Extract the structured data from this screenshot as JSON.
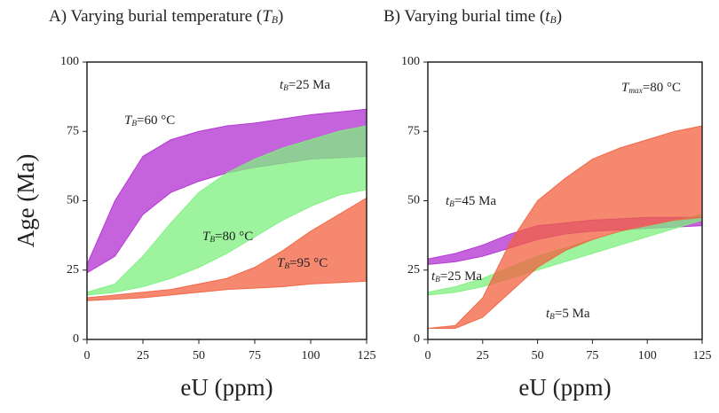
{
  "chart_data": [
    {
      "type": "band",
      "title": {
        "text": "A) Varying burial temperature (",
        "var": "T",
        "sub": "B",
        "end": ")"
      },
      "xlabel": "eU (ppm)",
      "ylabel": "Age (Ma)",
      "annotation": {
        "var": "t",
        "sub": "B",
        "rest": "=25 Ma"
      },
      "x": [
        0,
        12.5,
        25,
        37.5,
        50,
        62.5,
        75,
        87.5,
        100,
        112.5,
        125
      ],
      "xlim": [
        0,
        125
      ],
      "xticks": [
        0,
        25,
        50,
        75,
        100,
        125
      ],
      "ylim": [
        0,
        100
      ],
      "yticks": [
        0,
        25,
        50,
        75,
        100
      ],
      "series": [
        {
          "var": "T",
          "sub": "B",
          "rest": "=60 °C",
          "color": "#b12fd1",
          "upper": [
            27,
            50,
            66,
            72,
            75,
            77,
            78,
            79.5,
            81,
            82,
            83
          ],
          "lower": [
            24,
            30,
            45,
            53,
            57,
            60,
            62,
            63.5,
            65,
            65.5,
            66
          ]
        },
        {
          "var": "T",
          "sub": "B",
          "rest": "=80 °C",
          "color": "#7ef07e",
          "upper": [
            17,
            20,
            30,
            42,
            53,
            60,
            65,
            69,
            72,
            75,
            77
          ],
          "lower": [
            16,
            17,
            19,
            22,
            26,
            31,
            37,
            43,
            48,
            52,
            54
          ]
        },
        {
          "var": "T",
          "sub": "B",
          "rest": "=95 °C",
          "color": "#f2603f",
          "upper": [
            15,
            16,
            17,
            18,
            20,
            22,
            26,
            32,
            39,
            45,
            51
          ],
          "lower": [
            14,
            14.5,
            15,
            16,
            17,
            18,
            18.5,
            19,
            20,
            20.5,
            21
          ]
        }
      ]
    },
    {
      "type": "band",
      "title": {
        "text": "B) Varying burial time (",
        "var": "t",
        "sub": "B",
        "end": ")"
      },
      "xlabel": "eU (ppm)",
      "annotation": {
        "var": "T",
        "sub": "max",
        "rest": "=80 °C"
      },
      "x": [
        0,
        12.5,
        25,
        37.5,
        50,
        62.5,
        75,
        87.5,
        100,
        112.5,
        125
      ],
      "xlim": [
        0,
        125
      ],
      "xticks": [
        0,
        25,
        50,
        75,
        100,
        125
      ],
      "ylim": [
        0,
        100
      ],
      "yticks": [
        0,
        25,
        50,
        75,
        100
      ],
      "series": [
        {
          "var": "t",
          "sub": "B",
          "rest": "=45 Ma",
          "color": "#b12fd1",
          "upper": [
            29,
            31,
            34,
            38,
            41,
            42,
            43,
            43.5,
            44,
            44,
            44
          ],
          "lower": [
            27,
            28,
            30,
            33,
            36,
            38,
            39,
            39.5,
            40,
            40.5,
            41
          ]
        },
        {
          "var": "t",
          "sub": "B",
          "rest": "=25 Ma",
          "color": "#7ef07e",
          "upper": [
            17,
            19,
            22,
            26,
            30,
            33,
            36,
            39,
            41,
            43,
            45
          ],
          "lower": [
            16,
            17,
            19,
            22,
            25,
            28,
            31,
            34,
            37,
            40,
            43
          ]
        },
        {
          "var": "t",
          "sub": "B",
          "rest": "=5 Ma",
          "color": "#f2603f",
          "upper": [
            4,
            5,
            15,
            35,
            50,
            58,
            65,
            69,
            72,
            75,
            77
          ],
          "lower": [
            4,
            4,
            8,
            17,
            26,
            32,
            36,
            39,
            41,
            43,
            44
          ]
        }
      ]
    }
  ]
}
